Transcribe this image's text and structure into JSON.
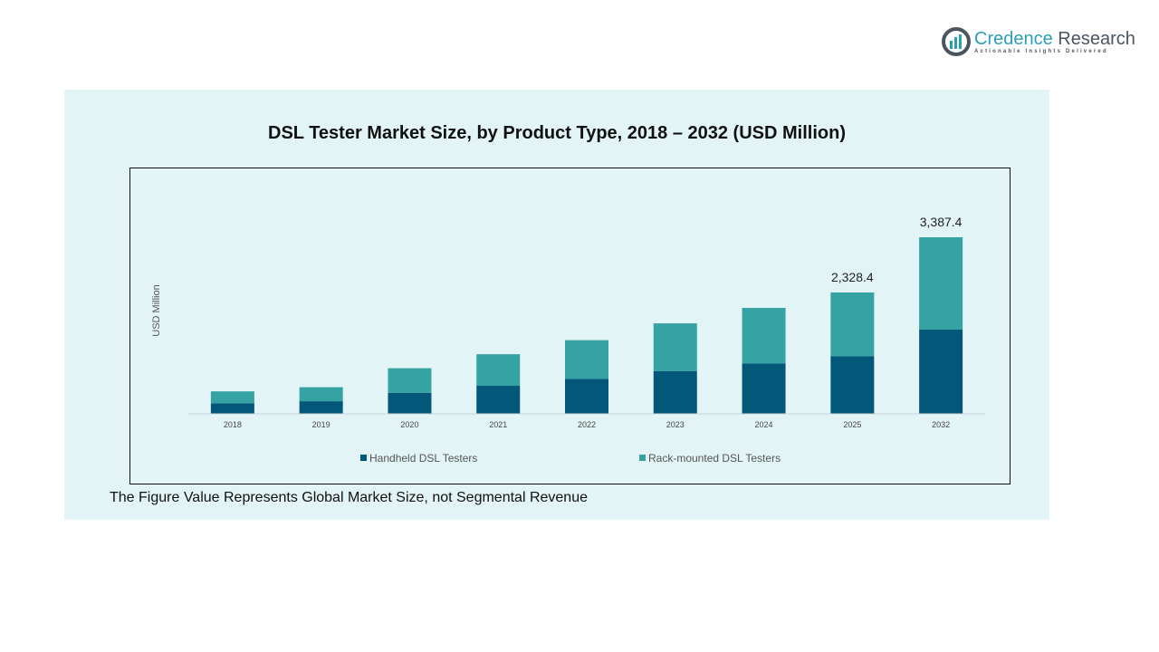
{
  "brand": {
    "name_part1": "Credence",
    "name_part2": " Research",
    "tagline": "Actionable Insights Delivered"
  },
  "footnote": "The Figure Value Represents Global Market Size, not Segmental Revenue",
  "colors": {
    "handheld": "#03587a",
    "rack": "#35a3a4",
    "panel": "#e2f4f5"
  },
  "chart_data": {
    "type": "bar",
    "stacked": true,
    "title": "DSL Tester Market Size, by Product Type, 2018 – 2032 (USD Million)",
    "xlabel": "",
    "ylabel": "USD Million",
    "categories": [
      "2018",
      "2019",
      "2020",
      "2021",
      "2022",
      "2023",
      "2024",
      "2025",
      "2032"
    ],
    "series": [
      {
        "name": "Handheld DSL Testers",
        "values": [
          202,
          242,
          404,
          538,
          673,
          821,
          969,
          1104,
          1616
        ]
      },
      {
        "name": "Rack-mounted DSL Testers",
        "values": [
          229,
          269,
          471,
          606,
          740,
          915,
          1063,
          1224.4,
          1771.4
        ]
      }
    ],
    "totals_labels": {
      "2025": "2,328.4",
      "2032": "3,387.4"
    },
    "ylim": [
      0,
      3387.4
    ],
    "grid": false,
    "legend": "bottom"
  }
}
